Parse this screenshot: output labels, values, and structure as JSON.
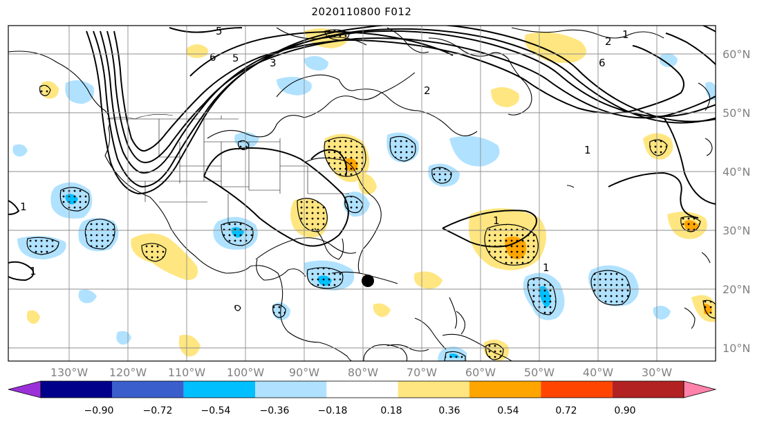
{
  "title": "2020110800 F012",
  "lon_labels": [
    "130°W",
    "120°W",
    "110°W",
    "100°W",
    "90°W",
    "80°W",
    "70°W",
    "60°W",
    "50°W",
    "40°W",
    "30°W"
  ],
  "lat_labels": [
    "60°N",
    "50°N",
    "40°N",
    "30°N",
    "20°N",
    "10°N"
  ],
  "colorbar": {
    "tick_labels": [
      "−0.90",
      "−0.72",
      "−0.54",
      "−0.36",
      "−0.18",
      "0.18",
      "0.36",
      "0.54",
      "0.72",
      "0.90"
    ],
    "colors": [
      "#9b30d9",
      "#00008b",
      "#3a5fcd",
      "#00bfff",
      "#b0e2ff",
      "#ffffff",
      "#ffe680",
      "#ffa500",
      "#ff4500",
      "#b22222",
      "#ff82ab"
    ]
  },
  "contour_labels": [
    "5",
    "6",
    "5",
    "3",
    "2",
    "1",
    "1",
    "1",
    "2",
    "6",
    "1",
    "1",
    "1"
  ],
  "colors": {
    "positive_weak": "#ffe680",
    "positive_mod": "#ffa500",
    "negative_weak": "#b0e2ff",
    "negative_mod": "#00bfff",
    "contour": "#000000",
    "grid": "#8c8c8c",
    "axis_text": "#808080"
  },
  "marker": "black-dot"
}
